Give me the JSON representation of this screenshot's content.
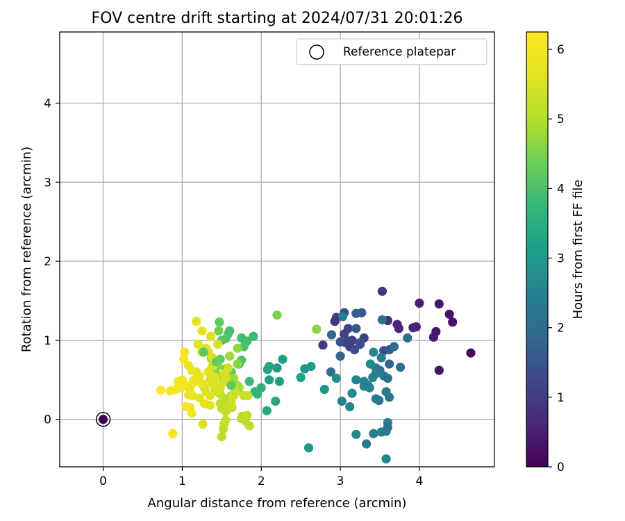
{
  "chart_data": {
    "type": "scatter",
    "title": "FOV centre drift starting at 2024/07/31 20:01:26",
    "xlabel": "Angular distance from reference (arcmin)",
    "ylabel": "Rotation from reference (arcmin)",
    "xlim": [
      -0.55,
      4.95
    ],
    "ylim": [
      -0.6,
      4.9
    ],
    "x_ticks": [
      "0",
      "1",
      "2",
      "3",
      "4"
    ],
    "y_ticks": [
      "0",
      "1",
      "2",
      "3",
      "4"
    ],
    "grid": true,
    "legend": {
      "entries": [
        "Reference platepar"
      ],
      "placement": "top-right"
    },
    "colorbar": {
      "label": "Hours from first FF file",
      "range": [
        0,
        6.25
      ],
      "ticks": [
        "0",
        "1",
        "2",
        "3",
        "4",
        "5",
        "6"
      ],
      "colormap": "viridis"
    },
    "reference_point": {
      "x": 0,
      "y": 0
    },
    "points": [
      [
        0.0,
        0.0,
        0.0
      ],
      [
        4.65,
        0.84,
        0.15
      ],
      [
        4.25,
        1.46,
        0.35
      ],
      [
        4.42,
        1.23,
        0.3
      ],
      [
        4.38,
        1.33,
        0.3
      ],
      [
        4.25,
        0.62,
        0.3
      ],
      [
        4.21,
        1.11,
        0.35
      ],
      [
        4.18,
        1.04,
        0.4
      ],
      [
        4.0,
        1.47,
        0.5
      ],
      [
        3.96,
        1.17,
        0.55
      ],
      [
        3.92,
        1.16,
        0.6
      ],
      [
        3.72,
        1.2,
        0.5
      ],
      [
        3.74,
        1.15,
        0.6
      ],
      [
        3.53,
        1.62,
        0.8
      ],
      [
        3.6,
        1.25,
        0.75
      ],
      [
        3.27,
        1.35,
        1.6
      ],
      [
        3.2,
        1.34,
        1.7
      ],
      [
        3.05,
        1.35,
        1.3
      ],
      [
        2.95,
        1.29,
        1.0
      ],
      [
        2.93,
        1.24,
        0.9
      ],
      [
        3.1,
        1.15,
        1.2
      ],
      [
        3.05,
        1.08,
        1.1
      ],
      [
        3.15,
        1.0,
        1.0
      ],
      [
        3.3,
        1.03,
        1.15
      ],
      [
        3.0,
        0.98,
        1.4
      ],
      [
        3.07,
        0.97,
        1.3
      ],
      [
        3.1,
        0.99,
        1.2
      ],
      [
        3.12,
        0.92,
        1.1
      ],
      [
        3.25,
        0.95,
        1.2
      ],
      [
        2.89,
        1.07,
        1.9
      ],
      [
        2.78,
        0.94,
        1.0
      ],
      [
        3.2,
        1.15,
        1.6
      ],
      [
        3.25,
        0.97,
        1.4
      ],
      [
        3.18,
        0.88,
        1.3
      ],
      [
        3.0,
        0.8,
        1.8
      ],
      [
        3.53,
        1.26,
        2.1
      ],
      [
        3.55,
        0.87,
        1.3
      ],
      [
        3.62,
        0.88,
        1.6
      ],
      [
        3.68,
        0.92,
        2.0
      ],
      [
        3.85,
        1.03,
        2.0
      ],
      [
        3.76,
        0.66,
        2.1
      ],
      [
        3.62,
        0.7,
        1.9
      ],
      [
        3.45,
        0.65,
        2.3
      ],
      [
        3.5,
        0.62,
        2.2
      ],
      [
        3.42,
        0.85,
        2.6
      ],
      [
        3.38,
        0.7,
        2.7
      ],
      [
        3.45,
        0.58,
        2.5
      ],
      [
        3.52,
        0.78,
        2.4
      ],
      [
        3.55,
        0.55,
        2.3
      ],
      [
        3.6,
        0.52,
        2.1
      ],
      [
        3.41,
        0.53,
        2.5
      ],
      [
        3.3,
        0.48,
        2.5
      ],
      [
        3.35,
        0.43,
        2.6
      ],
      [
        3.37,
        0.4,
        2.6
      ],
      [
        3.3,
        0.42,
        2.4
      ],
      [
        3.2,
        0.5,
        2.5
      ],
      [
        3.15,
        0.33,
        2.6
      ],
      [
        3.45,
        0.26,
        2.4
      ],
      [
        3.49,
        0.24,
        2.2
      ],
      [
        3.62,
        0.28,
        2.2
      ],
      [
        3.58,
        0.35,
        2.3
      ],
      [
        3.02,
        0.23,
        2.5
      ],
      [
        3.12,
        0.16,
        2.6
      ],
      [
        2.88,
        0.6,
        2.0
      ],
      [
        2.95,
        0.52,
        2.8
      ],
      [
        2.8,
        0.38,
        2.9
      ],
      [
        3.2,
        -0.19,
        2.6
      ],
      [
        3.33,
        -0.31,
        2.3
      ],
      [
        3.42,
        -0.18,
        2.3
      ],
      [
        3.52,
        -0.16,
        2.5
      ],
      [
        3.6,
        -0.04,
        2.5
      ],
      [
        3.58,
        -0.15,
        2.3
      ],
      [
        3.6,
        -0.1,
        2.2
      ],
      [
        3.58,
        -0.5,
        2.6
      ],
      [
        2.6,
        -0.36,
        3.0
      ],
      [
        3.03,
        1.3,
        2.4
      ],
      [
        2.55,
        0.64,
        3.0
      ],
      [
        2.63,
        0.67,
        3.1
      ],
      [
        2.5,
        0.53,
        3.2
      ],
      [
        2.27,
        0.76,
        3.1
      ],
      [
        2.2,
        0.65,
        3.1
      ],
      [
        2.23,
        0.48,
        3.2
      ],
      [
        2.1,
        0.67,
        3.3
      ],
      [
        2.08,
        0.63,
        3.3
      ],
      [
        2.1,
        0.5,
        3.2
      ],
      [
        2.18,
        0.23,
        3.4
      ],
      [
        2.07,
        0.11,
        3.4
      ],
      [
        2.0,
        0.4,
        3.6
      ],
      [
        1.92,
        0.35,
        3.7
      ],
      [
        1.95,
        0.32,
        3.7
      ],
      [
        1.85,
        0.48,
        3.8
      ],
      [
        1.9,
        1.05,
        3.8
      ],
      [
        1.82,
        0.99,
        3.8
      ],
      [
        1.8,
        0.97,
        3.9
      ],
      [
        1.75,
        1.03,
        3.9
      ],
      [
        1.78,
        0.92,
        4.0
      ],
      [
        1.6,
        1.12,
        3.9
      ],
      [
        1.58,
        1.08,
        4.0
      ],
      [
        1.55,
        1.02,
        4.1
      ],
      [
        1.5,
        1.0,
        4.1
      ],
      [
        1.62,
        0.6,
        4.2
      ],
      [
        1.72,
        0.7,
        4.0
      ],
      [
        1.75,
        0.75,
        4.1
      ],
      [
        1.58,
        0.62,
        4.2
      ],
      [
        1.55,
        0.64,
        4.3
      ],
      [
        1.48,
        0.76,
        4.3
      ],
      [
        1.47,
        1.23,
        4.2
      ],
      [
        2.2,
        1.32,
        4.5
      ],
      [
        2.7,
        1.14,
        4.6
      ],
      [
        1.37,
        0.77,
        4.5
      ],
      [
        1.4,
        0.72,
        4.5
      ],
      [
        1.45,
        0.68,
        4.6
      ],
      [
        1.42,
        0.62,
        4.6
      ],
      [
        1.5,
        0.55,
        4.7
      ],
      [
        1.52,
        0.49,
        4.7
      ],
      [
        1.57,
        0.55,
        4.8
      ],
      [
        1.65,
        0.52,
        4.8
      ],
      [
        1.7,
        0.43,
        4.9
      ],
      [
        1.72,
        0.4,
        4.9
      ],
      [
        1.68,
        0.35,
        5.0
      ],
      [
        1.62,
        0.3,
        5.0
      ],
      [
        1.55,
        0.26,
        5.0
      ],
      [
        1.58,
        0.2,
        4.9
      ],
      [
        1.52,
        0.16,
        5.0
      ],
      [
        1.5,
        0.14,
        5.1
      ],
      [
        1.55,
        0.1,
        5.1
      ],
      [
        1.48,
        0.2,
        5.1
      ],
      [
        1.45,
        0.35,
        5.1
      ],
      [
        1.42,
        0.38,
        5.2
      ],
      [
        1.4,
        0.45,
        5.2
      ],
      [
        1.48,
        0.32,
        5.2
      ],
      [
        1.76,
        0.04,
        5.0
      ],
      [
        1.82,
        0.05,
        5.1
      ],
      [
        1.75,
        0.01,
        5.1
      ],
      [
        1.8,
        -0.02,
        5.1
      ],
      [
        1.85,
        -0.08,
        5.1
      ],
      [
        1.55,
        -0.01,
        5.2
      ],
      [
        1.53,
        -0.06,
        5.2
      ],
      [
        1.52,
        -0.12,
        5.1
      ],
      [
        1.5,
        -0.22,
        5.1
      ],
      [
        1.63,
        0.15,
        5.2
      ],
      [
        1.58,
        0.18,
        5.3
      ],
      [
        1.62,
        0.22,
        5.3
      ],
      [
        1.65,
        0.3,
        5.4
      ],
      [
        1.67,
        0.35,
        5.3
      ],
      [
        1.78,
        0.3,
        5.3
      ],
      [
        1.83,
        0.3,
        5.3
      ],
      [
        1.52,
        0.47,
        5.4
      ],
      [
        1.55,
        0.51,
        5.4
      ],
      [
        1.48,
        0.4,
        5.4
      ],
      [
        1.45,
        0.38,
        5.5
      ],
      [
        1.58,
        0.65,
        5.4
      ],
      [
        1.53,
        0.58,
        5.5
      ],
      [
        1.35,
        0.5,
        5.5
      ],
      [
        1.28,
        0.4,
        5.5
      ],
      [
        1.33,
        0.6,
        5.6
      ],
      [
        1.38,
        0.67,
        5.5
      ],
      [
        1.42,
        0.52,
        5.6
      ],
      [
        1.38,
        0.45,
        5.6
      ],
      [
        1.3,
        0.35,
        5.6
      ],
      [
        1.35,
        0.3,
        5.7
      ],
      [
        1.3,
        0.9,
        5.6
      ],
      [
        1.33,
        0.85,
        5.6
      ],
      [
        1.38,
        0.78,
        5.5
      ],
      [
        1.36,
        1.05,
        5.6
      ],
      [
        1.45,
        0.95,
        5.5
      ],
      [
        1.2,
        0.95,
        5.7
      ],
      [
        1.25,
        0.85,
        5.7
      ],
      [
        1.18,
        1.24,
        5.7
      ],
      [
        1.25,
        1.12,
        5.7
      ],
      [
        1.28,
        0.2,
        5.8
      ],
      [
        1.25,
        0.45,
        5.8
      ],
      [
        1.22,
        0.55,
        5.8
      ],
      [
        1.18,
        0.6,
        5.8
      ],
      [
        1.15,
        0.5,
        5.8
      ],
      [
        1.2,
        0.48,
        5.9
      ],
      [
        1.12,
        0.45,
        5.9
      ],
      [
        1.1,
        0.37,
        5.9
      ],
      [
        1.05,
        0.42,
        6.0
      ],
      [
        1.0,
        0.5,
        6.0
      ],
      [
        0.95,
        0.48,
        6.0
      ],
      [
        0.98,
        0.4,
        6.1
      ],
      [
        0.92,
        0.38,
        6.1
      ],
      [
        0.85,
        0.36,
        6.1
      ],
      [
        0.73,
        0.37,
        6.2
      ],
      [
        1.08,
        0.31,
        6.0
      ],
      [
        1.13,
        0.3,
        5.9
      ],
      [
        1.1,
        0.15,
        6.0
      ],
      [
        1.12,
        0.08,
        6.0
      ],
      [
        1.05,
        0.16,
        6.1
      ],
      [
        0.88,
        -0.18,
        6.1
      ],
      [
        1.02,
        0.76,
        6.0
      ],
      [
        1.08,
        0.68,
        6.0
      ],
      [
        1.03,
        0.85,
        6.0
      ],
      [
        1.12,
        0.62,
        5.9
      ],
      [
        1.22,
        0.27,
        5.8
      ],
      [
        1.35,
        0.18,
        5.6
      ],
      [
        1.26,
        -0.06,
        5.5
      ],
      [
        1.4,
        0.54,
        5.5
      ],
      [
        1.43,
        0.73,
        4.3
      ],
      [
        1.62,
        0.43,
        4.2
      ],
      [
        1.27,
        0.85,
        4.2
      ],
      [
        1.46,
        1.12,
        4.4
      ],
      [
        1.7,
        0.7,
        4.6
      ],
      [
        1.7,
        0.9,
        4.7
      ],
      [
        1.6,
        0.8,
        4.8
      ]
    ]
  }
}
